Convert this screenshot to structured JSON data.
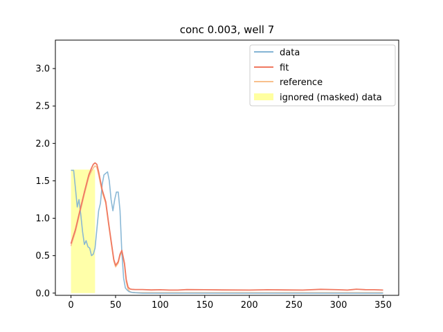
{
  "chart_data": {
    "type": "line",
    "title": "conc 0.003, well 7",
    "xlabel": "",
    "ylabel": "",
    "xlim": [
      -17.5,
      367.5
    ],
    "ylim": [
      -0.03,
      3.38
    ],
    "xticks": [
      0,
      50,
      100,
      150,
      200,
      250,
      300,
      350
    ],
    "yticks": [
      0.0,
      0.5,
      1.0,
      1.5,
      2.0,
      2.5,
      3.0
    ],
    "xtick_labels": [
      "0",
      "50",
      "100",
      "150",
      "200",
      "250",
      "300",
      "350"
    ],
    "ytick_labels": [
      "0.0",
      "0.5",
      "1.0",
      "1.5",
      "2.0",
      "2.5",
      "3.0"
    ],
    "grid": false,
    "legend_position": "upper right",
    "masked_region": {
      "label": "ignored (masked) data",
      "x": [
        0,
        27
      ],
      "y": [
        0,
        1.65
      ],
      "color": "#ffffa0"
    },
    "series": [
      {
        "name": "data",
        "color": "#84b4d4",
        "x": [
          0,
          3,
          5,
          7,
          9,
          11,
          13,
          15,
          17,
          19,
          21,
          23,
          25,
          27,
          29,
          31,
          33,
          35,
          37,
          39,
          41,
          43,
          45,
          47,
          49,
          51,
          53,
          55,
          57,
          59,
          61,
          63,
          65,
          68,
          72,
          80,
          100,
          150,
          200,
          250,
          300,
          350
        ],
        "y": [
          1.64,
          1.64,
          1.4,
          1.15,
          1.25,
          1.05,
          0.82,
          0.65,
          0.7,
          0.62,
          0.6,
          0.5,
          0.52,
          0.6,
          0.85,
          1.1,
          1.2,
          1.45,
          1.58,
          1.6,
          1.62,
          1.5,
          1.25,
          1.1,
          1.25,
          1.35,
          1.35,
          1.1,
          0.55,
          0.2,
          0.07,
          0.04,
          0.02,
          0.01,
          0.005,
          0.0,
          0.0,
          0.0,
          0.0,
          0.0,
          0.0,
          0.0
        ]
      },
      {
        "name": "fit",
        "color": "#f07860",
        "x": [
          0,
          5,
          10,
          15,
          20,
          23,
          25,
          27,
          29,
          31,
          35,
          39,
          42,
          45,
          48,
          50,
          53,
          55,
          57,
          60,
          62,
          64,
          66,
          68,
          72,
          80,
          90,
          100,
          110,
          120,
          130,
          150,
          170,
          200,
          220,
          240,
          260,
          280,
          300,
          310,
          320,
          330,
          340,
          350
        ],
        "y": [
          0.66,
          0.85,
          1.1,
          1.35,
          1.58,
          1.67,
          1.72,
          1.74,
          1.72,
          1.62,
          1.38,
          1.22,
          0.95,
          0.7,
          0.45,
          0.37,
          0.42,
          0.52,
          0.57,
          0.4,
          0.18,
          0.08,
          0.055,
          0.05,
          0.048,
          0.048,
          0.042,
          0.045,
          0.04,
          0.04,
          0.047,
          0.045,
          0.042,
          0.04,
          0.045,
          0.042,
          0.04,
          0.05,
          0.045,
          0.04,
          0.052,
          0.046,
          0.045,
          0.04
        ]
      },
      {
        "name": "reference",
        "color": "#f8c08c",
        "x": [
          0,
          5,
          10,
          15,
          20,
          23,
          25,
          27,
          29,
          31,
          35,
          39,
          42,
          45,
          48,
          50,
          53,
          55,
          57,
          60,
          62,
          64,
          66,
          68,
          72,
          80,
          100,
          150,
          200,
          250,
          300,
          350
        ],
        "y": [
          0.63,
          0.82,
          1.07,
          1.32,
          1.55,
          1.63,
          1.67,
          1.7,
          1.68,
          1.58,
          1.35,
          1.2,
          0.93,
          0.68,
          0.43,
          0.35,
          0.4,
          0.5,
          0.55,
          0.38,
          0.15,
          0.05,
          0.02,
          0.01,
          0.005,
          0.005,
          0.005,
          0.005,
          0.005,
          0.005,
          0.005,
          0.005
        ]
      }
    ]
  }
}
